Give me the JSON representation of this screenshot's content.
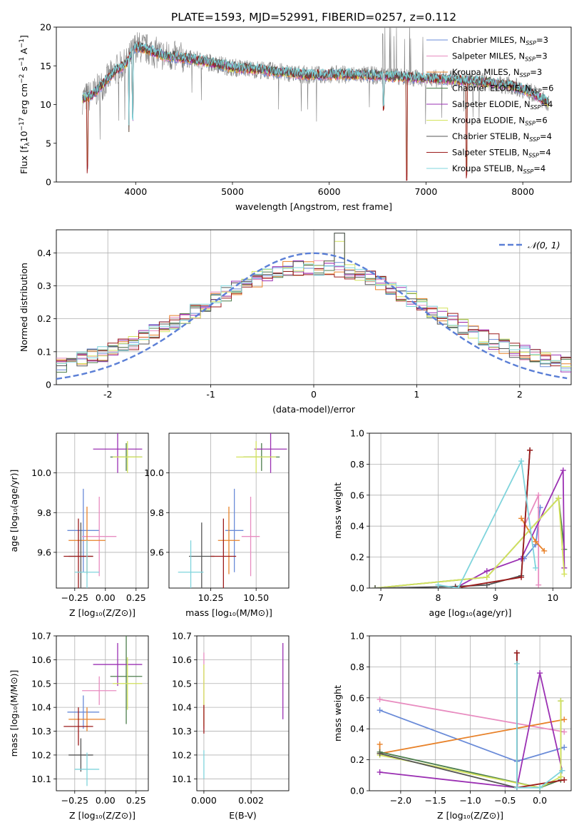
{
  "figure": {
    "title": "PLATE=1593, MJD=52991, FIBERID=0257, z=0.112"
  },
  "legend_labels": [
    "Chabrier MILES, N",
    "Salpeter MILES, N",
    "Kroupa MILES, N",
    "Chabrier ELODIE, N",
    "Salpeter ELODIE, N",
    "Kroupa ELODIE, N",
    "Chabrier STELIB, N",
    "Salpeter STELIB, N",
    "Kroupa STELIB, N"
  ],
  "legend_sub": "SSP",
  "legend_vals": [
    "=3",
    "=3",
    "=3",
    "=6",
    "=4",
    "=6",
    "=4",
    "=4",
    "=4"
  ],
  "colors": {
    "chabrier_miles": "#6a8bd8",
    "salpeter_miles": "#e88cc0",
    "kroupa_miles": "#e8822a",
    "chabrier_elodie": "#4c7d4c",
    "salpeter_elodie": "#9b30b3",
    "kroupa_elodie": "#d4e35c",
    "chabrier_stelib": "#555555",
    "salpeter_stelib": "#9c1b1b",
    "kroupa_stelib": "#7fd4dc",
    "normal": "#5b7fd6",
    "data": "#808080"
  },
  "chart_data": [
    {
      "id": "spectrum",
      "type": "line",
      "xlabel": "wavelength [Angstrom, rest frame]",
      "ylabel": "Flux [f",
      "xlim": [
        3180,
        8500
      ],
      "ylim": [
        0,
        20
      ],
      "xticks": [
        4000,
        5000,
        6000,
        7000,
        8000
      ],
      "yticks": [
        0,
        5,
        10,
        15,
        20
      ],
      "grid": false,
      "legend": "top-right",
      "envelope": {
        "x": [
          3450,
          3550,
          3650,
          3800,
          3900,
          4000,
          4100,
          4300,
          4500,
          4700,
          5000,
          5200,
          5500,
          5800,
          6100,
          6400,
          6700,
          7000,
          7300,
          7600,
          7900,
          8100,
          8270
        ],
        "y": [
          10.8,
          11.2,
          12.5,
          14.5,
          15.2,
          17.5,
          17.2,
          16.3,
          16.0,
          15.6,
          14.8,
          14.6,
          14.2,
          13.8,
          13.9,
          13.8,
          13.6,
          13.4,
          13.2,
          12.9,
          12.4,
          11.5,
          10.2
        ]
      },
      "dips": [
        {
          "x": 3500,
          "y": 1.0
        },
        {
          "x": 3930,
          "y": 6.0
        },
        {
          "x": 3970,
          "y": 7.5
        },
        {
          "x": 6560,
          "y": 9.0
        },
        {
          "x": 6800,
          "y": 0.0
        },
        {
          "x": 7420,
          "y": 0.0
        }
      ]
    },
    {
      "id": "residuals",
      "type": "bar",
      "xlabel": "(data-model)/error",
      "ylabel": "Normed distribution",
      "xlim": [
        -2.5,
        2.5
      ],
      "ylim": [
        0,
        0.47
      ],
      "xticks": [
        -2,
        -1,
        0,
        1,
        2
      ],
      "yticks": [
        0.0,
        0.1,
        0.2,
        0.3,
        0.4
      ],
      "grid": true,
      "legend": "top-right",
      "legend_label": "𝒩(0, 1)",
      "bin_width": 0.1
    },
    {
      "id": "age_vs_Z",
      "type": "scatter",
      "xlabel": "Z [log₁₀(Z/Z⊙)]",
      "ylabel": "age  [log₁₀(age/yr)]",
      "xlim": [
        -0.4,
        0.35
      ],
      "ylim": [
        9.42,
        10.2
      ],
      "xticks": [
        -0.25,
        0.0,
        0.25
      ],
      "xticklabels": [
        "−0.25",
        "0.00",
        "0.25"
      ],
      "yticks": [
        9.6,
        9.8,
        10.0
      ],
      "yticklabels": [
        "9.6",
        "9.8",
        "10.0"
      ],
      "grid": true,
      "points": [
        {
          "s": "chabrier_miles",
          "x": -0.18,
          "y": 9.71,
          "xerr": 0.13,
          "yerr": 0.21
        },
        {
          "s": "salpeter_miles",
          "x": -0.05,
          "y": 9.68,
          "xerr": 0.14,
          "yerr": 0.2
        },
        {
          "s": "kroupa_miles",
          "x": -0.15,
          "y": 9.66,
          "xerr": 0.15,
          "yerr": 0.17
        },
        {
          "s": "chabrier_elodie",
          "x": 0.17,
          "y": 10.08,
          "xerr": 0.13,
          "yerr": 0.07
        },
        {
          "s": "salpeter_elodie",
          "x": 0.1,
          "y": 10.12,
          "xerr": 0.2,
          "yerr": 0.12
        },
        {
          "s": "kroupa_elodie",
          "x": 0.18,
          "y": 10.08,
          "xerr": 0.12,
          "yerr": 0.08
        },
        {
          "s": "chabrier_stelib",
          "x": -0.2,
          "y": 9.58,
          "xerr": 0.1,
          "yerr": 0.17
        },
        {
          "s": "salpeter_stelib",
          "x": -0.22,
          "y": 9.58,
          "xerr": 0.12,
          "yerr": 0.19
        },
        {
          "s": "kroupa_stelib",
          "x": -0.15,
          "y": 9.5,
          "xerr": 0.1,
          "yerr": 0.16
        }
      ]
    },
    {
      "id": "age_vs_mass",
      "type": "scatter",
      "xlabel": "mass [log₁₀(M/M⊙)]",
      "ylabel": "",
      "xlim": [
        10.02,
        10.68
      ],
      "ylim": [
        9.42,
        10.2
      ],
      "xticks": [
        10.25,
        10.5
      ],
      "xticklabels": [
        "10.25",
        "10.50"
      ],
      "yticks": [
        9.6,
        9.8,
        10.0
      ],
      "yticklabels": [
        "9.6",
        "9.8",
        "10.0"
      ],
      "grid": true,
      "points": [
        {
          "s": "chabrier_miles",
          "x": 10.38,
          "y": 9.71,
          "xerr": 0.05,
          "yerr": 0.21
        },
        {
          "s": "salpeter_miles",
          "x": 10.47,
          "y": 9.68,
          "xerr": 0.05,
          "yerr": 0.2
        },
        {
          "s": "kroupa_miles",
          "x": 10.35,
          "y": 9.66,
          "xerr": 0.06,
          "yerr": 0.17
        },
        {
          "s": "chabrier_elodie",
          "x": 10.53,
          "y": 10.08,
          "xerr": 0.1,
          "yerr": 0.07
        },
        {
          "s": "salpeter_elodie",
          "x": 10.58,
          "y": 10.12,
          "xerr": 0.09,
          "yerr": 0.12
        },
        {
          "s": "kroupa_elodie",
          "x": 10.5,
          "y": 10.08,
          "xerr": 0.11,
          "yerr": 0.08
        },
        {
          "s": "chabrier_stelib",
          "x": 10.2,
          "y": 9.58,
          "xerr": 0.07,
          "yerr": 0.17
        },
        {
          "s": "salpeter_stelib",
          "x": 10.32,
          "y": 9.58,
          "xerr": 0.07,
          "yerr": 0.19
        },
        {
          "s": "kroupa_stelib",
          "x": 10.14,
          "y": 9.5,
          "xerr": 0.07,
          "yerr": 0.16
        }
      ]
    },
    {
      "id": "weight_vs_age",
      "type": "line",
      "xlabel": "age  [log₁₀(age/yr)]",
      "ylabel": "mass weight",
      "xlim": [
        6.8,
        10.32
      ],
      "ylim": [
        0,
        1
      ],
      "xticks": [
        7,
        8,
        9,
        10
      ],
      "xticklabels": [
        "7",
        "8",
        "9",
        "10"
      ],
      "yticks": [
        0.0,
        0.2,
        0.4,
        0.6,
        0.8,
        1.0
      ],
      "yticklabels": [
        "0.0",
        "0.2",
        "0.4",
        "0.6",
        "0.8",
        "1.0"
      ],
      "grid": true,
      "series": [
        {
          "s": "chabrier_miles",
          "x": [
            9.5,
            9.7,
            9.78
          ],
          "y": [
            0.19,
            0.28,
            0.52
          ]
        },
        {
          "s": "salpeter_miles",
          "x": [
            9.5,
            9.75,
            9.75
          ],
          "y": [
            0.4,
            0.6,
            0.02
          ]
        },
        {
          "s": "kroupa_miles",
          "x": [
            9.45,
            9.7,
            9.85
          ],
          "y": [
            0.45,
            0.3,
            0.24
          ]
        },
        {
          "s": "chabrier_elodie",
          "x": [
            6.9,
            8.85,
            10.1,
            10.2
          ],
          "y": [
            0.0,
            0.07,
            0.58,
            0.25
          ]
        },
        {
          "s": "salpeter_elodie",
          "x": [
            8.3,
            8.85,
            9.45,
            10.18,
            10.2
          ],
          "y": [
            0.0,
            0.11,
            0.19,
            0.76,
            0.13
          ]
        },
        {
          "s": "kroupa_elodie",
          "x": [
            6.9,
            8.85,
            10.1,
            10.2
          ],
          "y": [
            0.0,
            0.07,
            0.58,
            0.09
          ]
        },
        {
          "s": "chabrier_stelib",
          "x": [
            6.9,
            8.3,
            8.85,
            9.45,
            9.6
          ],
          "y": [
            0.0,
            0.01,
            0.02,
            0.08,
            0.89
          ]
        },
        {
          "s": "salpeter_stelib",
          "x": [
            8.3,
            9.45,
            9.6
          ],
          "y": [
            0.0,
            0.07,
            0.89
          ]
        },
        {
          "s": "kroupa_stelib",
          "x": [
            8.0,
            8.35,
            9.45,
            9.7
          ],
          "y": [
            0.02,
            0.0,
            0.82,
            0.13
          ]
        }
      ]
    },
    {
      "id": "mass_vs_Z",
      "type": "scatter",
      "xlabel": "Z [log₁₀(Z/Z⊙)]",
      "ylabel": "mass [log₁₀(M/M⊙)]",
      "xlim": [
        -0.4,
        0.35
      ],
      "ylim": [
        10.05,
        10.7
      ],
      "xticks": [
        -0.25,
        0.0,
        0.25
      ],
      "xticklabels": [
        "−0.25",
        "0.00",
        "0.25"
      ],
      "yticks": [
        10.1,
        10.2,
        10.3,
        10.4,
        10.5,
        10.6,
        10.7
      ],
      "yticklabels": [
        "10.1",
        "10.2",
        "10.3",
        "10.4",
        "10.5",
        "10.6",
        "10.7"
      ],
      "grid": true,
      "points": [
        {
          "s": "chabrier_miles",
          "x": -0.18,
          "y": 10.38,
          "xerr": 0.13,
          "yerr": 0.07
        },
        {
          "s": "salpeter_miles",
          "x": -0.05,
          "y": 10.47,
          "xerr": 0.14,
          "yerr": 0.06
        },
        {
          "s": "kroupa_miles",
          "x": -0.15,
          "y": 10.35,
          "xerr": 0.15,
          "yerr": 0.05
        },
        {
          "s": "chabrier_elodie",
          "x": 0.17,
          "y": 10.53,
          "xerr": 0.13,
          "yerr": 0.2
        },
        {
          "s": "salpeter_elodie",
          "x": 0.1,
          "y": 10.58,
          "xerr": 0.2,
          "yerr": 0.09
        },
        {
          "s": "kroupa_elodie",
          "x": 0.18,
          "y": 10.5,
          "xerr": 0.12,
          "yerr": 0.11
        },
        {
          "s": "chabrier_stelib",
          "x": -0.2,
          "y": 10.2,
          "xerr": 0.1,
          "yerr": 0.07
        },
        {
          "s": "salpeter_stelib",
          "x": -0.22,
          "y": 10.32,
          "xerr": 0.12,
          "yerr": 0.08
        },
        {
          "s": "kroupa_stelib",
          "x": -0.15,
          "y": 10.14,
          "xerr": 0.1,
          "yerr": 0.07
        }
      ]
    },
    {
      "id": "mass_vs_ebv",
      "type": "scatter",
      "xlabel": "E(B-V)",
      "ylabel": "",
      "xlim": [
        -0.0003,
        0.0036
      ],
      "ylim": [
        10.05,
        10.7
      ],
      "xticks": [
        0.0,
        0.002
      ],
      "xticklabels": [
        "0.000",
        "0.002"
      ],
      "yticks": [
        10.1,
        10.2,
        10.3,
        10.4,
        10.5,
        10.6,
        10.7
      ],
      "yticklabels": [
        "10.1",
        "10.2",
        "10.3",
        "10.4",
        "10.5",
        "10.6",
        "10.7"
      ],
      "grid": true,
      "points": [
        {
          "s": "salpeter_miles",
          "x": 0.0,
          "y": 10.47,
          "xerr": 0,
          "yerr": 0.16
        },
        {
          "s": "kroupa_elodie",
          "x": 0.0,
          "y": 10.45,
          "xerr": 0,
          "yerr": 0.13
        },
        {
          "s": "salpeter_stelib",
          "x": 0.0,
          "y": 10.35,
          "xerr": 0,
          "yerr": 0.06
        },
        {
          "s": "kroupa_stelib",
          "x": 0.0,
          "y": 10.16,
          "xerr": 0,
          "yerr": 0.06
        },
        {
          "s": "salpeter_elodie",
          "x": 0.00335,
          "y": 10.51,
          "xerr": 0,
          "yerr": 0.16
        }
      ]
    },
    {
      "id": "weight_vs_Z",
      "type": "line",
      "xlabel": "Z [log₁₀(Z/Z⊙)]",
      "ylabel": "mass weight",
      "xlim": [
        -2.45,
        0.45
      ],
      "ylim": [
        0,
        1
      ],
      "xticks": [
        -2.0,
        -1.5,
        -1.0,
        -0.5,
        0.0
      ],
      "xticklabels": [
        "−2.0",
        "−1.5",
        "−1.0",
        "−0.5",
        "0.0"
      ],
      "yticks": [
        0.0,
        0.2,
        0.4,
        0.6,
        0.8,
        1.0
      ],
      "yticklabels": [
        "0.0",
        "0.2",
        "0.4",
        "0.6",
        "0.8",
        "1.0"
      ],
      "grid": true,
      "series": [
        {
          "s": "chabrier_miles",
          "x": [
            -2.3,
            -0.33,
            0.35
          ],
          "y": [
            0.52,
            0.19,
            0.28
          ]
        },
        {
          "s": "salpeter_miles",
          "x": [
            -2.3,
            0.35
          ],
          "y": [
            0.59,
            0.38
          ]
        },
        {
          "s": "kroupa_miles",
          "x": [
            -2.3,
            -2.3,
            0.35
          ],
          "y": [
            0.3,
            0.24,
            0.46
          ]
        },
        {
          "s": "chabrier_elodie",
          "x": [
            -2.3,
            0.0,
            0.3,
            0.3
          ],
          "y": [
            0.25,
            0.02,
            0.07,
            0.58
          ]
        },
        {
          "s": "salpeter_elodie",
          "x": [
            -2.3,
            -0.33,
            0.0,
            0.32
          ],
          "y": [
            0.12,
            0.02,
            0.76,
            0.13
          ]
        },
        {
          "s": "kroupa_elodie",
          "x": [
            -2.3,
            0.0,
            0.3,
            0.3
          ],
          "y": [
            0.23,
            0.02,
            0.09,
            0.58
          ]
        },
        {
          "s": "chabrier_stelib",
          "x": [
            -2.3,
            -0.33,
            -0.33
          ],
          "y": [
            0.24,
            0.02,
            0.89
          ]
        },
        {
          "s": "salpeter_stelib",
          "x": [
            -0.33,
            -0.33,
            0.35
          ],
          "y": [
            0.89,
            0.02,
            0.07
          ]
        },
        {
          "s": "kroupa_stelib",
          "x": [
            -0.33,
            -0.33,
            0.0,
            0.32
          ],
          "y": [
            0.82,
            0.02,
            0.02,
            0.13
          ]
        }
      ]
    }
  ]
}
